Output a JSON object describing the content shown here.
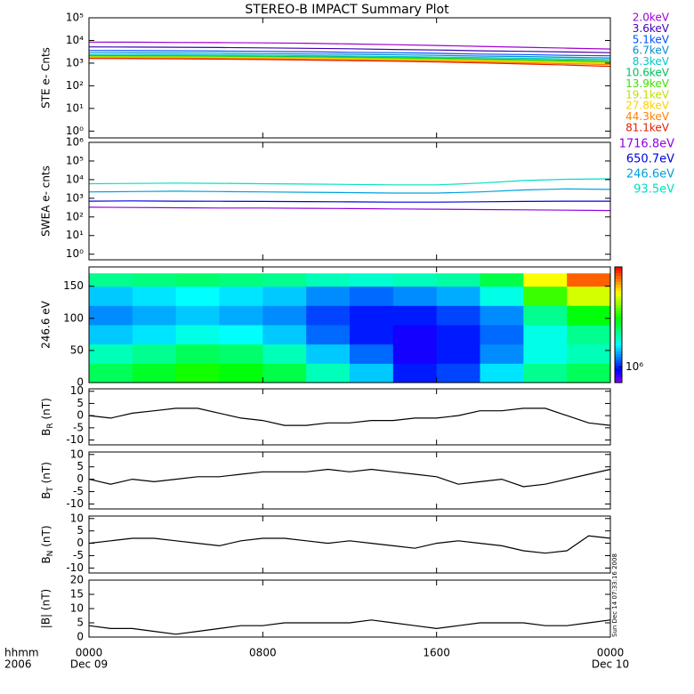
{
  "title": "STEREO-B IMPACT Summary Plot",
  "timestamp": "Sun Dec 14 07:33:16 2008",
  "x_axis": {
    "xlim": [
      0,
      24
    ],
    "ticks": [
      {
        "value": 0,
        "label": "0000"
      },
      {
        "value": 8,
        "label": "0800"
      },
      {
        "value": 16,
        "label": "1600"
      },
      {
        "value": 24,
        "label": "0000"
      }
    ],
    "day_labels": [
      {
        "value": 0,
        "label": "Dec 09"
      },
      {
        "value": 24,
        "label": "Dec 10"
      }
    ],
    "corner": [
      "hhmm",
      "2006"
    ]
  },
  "chart_data": [
    {
      "type": "line",
      "log_y": true,
      "ylabel": "STE e- Cnts",
      "ylim": [
        0.5,
        100000
      ],
      "yticks": [
        {
          "value": 1,
          "label": "10⁰"
        },
        {
          "value": 10,
          "label": "10¹"
        },
        {
          "value": 100,
          "label": "10²"
        },
        {
          "value": 1000,
          "label": "10³"
        },
        {
          "value": 10000,
          "label": "10⁴"
        },
        {
          "value": 100000,
          "label": "10⁵"
        }
      ],
      "x": [
        0,
        2,
        4,
        6,
        8,
        10,
        12,
        14,
        16,
        18,
        20,
        22,
        24
      ],
      "series": [
        {
          "name": "2.0keV",
          "color": "#a000d0",
          "values": [
            8500,
            8400,
            8200,
            8000,
            7800,
            7500,
            7000,
            6500,
            6000,
            5500,
            5000,
            4600,
            4200
          ]
        },
        {
          "name": "3.6keV",
          "color": "#4000b0",
          "values": [
            5200,
            5100,
            5000,
            4900,
            4700,
            4500,
            4300,
            4000,
            3800,
            3500,
            3300,
            3100,
            2900
          ]
        },
        {
          "name": "5.1keV",
          "color": "#0050ff",
          "values": [
            3600,
            3550,
            3500,
            3400,
            3300,
            3200,
            3000,
            2900,
            2700,
            2500,
            2400,
            2200,
            2100
          ]
        },
        {
          "name": "6.7keV",
          "color": "#0090d0",
          "values": [
            2900,
            2850,
            2800,
            2750,
            2650,
            2550,
            2450,
            2350,
            2200,
            2050,
            1950,
            1800,
            1700
          ]
        },
        {
          "name": "8.3keV",
          "color": "#00c8c8",
          "values": [
            2400,
            2380,
            2350,
            2300,
            2250,
            2150,
            2050,
            1950,
            1850,
            1750,
            1650,
            1550,
            1450
          ]
        },
        {
          "name": "10.6keV",
          "color": "#00c060",
          "values": [
            2150,
            2120,
            2100,
            2050,
            2000,
            1920,
            1850,
            1750,
            1650,
            1550,
            1450,
            1350,
            1250
          ]
        },
        {
          "name": "13.9keV",
          "color": "#40e000",
          "values": [
            2000,
            1980,
            1950,
            1900,
            1850,
            1780,
            1700,
            1620,
            1530,
            1430,
            1330,
            1230,
            1150
          ]
        },
        {
          "name": "19.1keV",
          "color": "#c0e000",
          "values": [
            1900,
            1880,
            1850,
            1800,
            1750,
            1680,
            1600,
            1520,
            1430,
            1330,
            1230,
            1130,
            1050
          ]
        },
        {
          "name": "27.8keV",
          "color": "#ffd000",
          "values": [
            1800,
            1780,
            1750,
            1700,
            1650,
            1580,
            1500,
            1420,
            1330,
            1230,
            1130,
            1030,
            950
          ]
        },
        {
          "name": "44.3keV",
          "color": "#ff8000",
          "values": [
            1700,
            1680,
            1650,
            1600,
            1550,
            1480,
            1400,
            1320,
            1230,
            1130,
            1030,
            930,
            850
          ]
        },
        {
          "name": "81.1keV",
          "color": "#e02000",
          "values": [
            1600,
            1570,
            1540,
            1490,
            1440,
            1370,
            1290,
            1210,
            1120,
            1020,
            920,
            820,
            720
          ]
        }
      ]
    },
    {
      "type": "line",
      "log_y": true,
      "ylabel": "SWEA e- cnts",
      "ylim": [
        0.5,
        1000000
      ],
      "yticks": [
        {
          "value": 1,
          "label": "10⁰"
        },
        {
          "value": 10,
          "label": "10¹"
        },
        {
          "value": 100,
          "label": "10²"
        },
        {
          "value": 1000,
          "label": "10³"
        },
        {
          "value": 10000,
          "label": "10⁴"
        },
        {
          "value": 100000,
          "label": "10⁵"
        },
        {
          "value": 1000000,
          "label": "10⁶"
        }
      ],
      "x": [
        0,
        2,
        4,
        6,
        8,
        10,
        12,
        14,
        16,
        18,
        20,
        22,
        24
      ],
      "series": [
        {
          "name": "1716.8eV",
          "color": "#9000e0",
          "values": [
            330,
            320,
            310,
            300,
            300,
            290,
            280,
            270,
            260,
            250,
            240,
            230,
            220
          ]
        },
        {
          "name": "650.7eV",
          "color": "#0000e0",
          "values": [
            700,
            720,
            700,
            690,
            680,
            660,
            640,
            620,
            620,
            650,
            680,
            700,
            700
          ]
        },
        {
          "name": "246.6eV",
          "color": "#00a0e0",
          "values": [
            2200,
            2300,
            2400,
            2300,
            2200,
            2100,
            2000,
            1900,
            1900,
            2200,
            2800,
            3200,
            3000
          ]
        },
        {
          "name": "93.5eV",
          "color": "#00e0c0",
          "values": [
            6000,
            6200,
            6500,
            6300,
            6000,
            5800,
            5500,
            5200,
            5200,
            6500,
            9000,
            10500,
            11000
          ]
        }
      ]
    },
    {
      "type": "heatmap",
      "ylabel": "246.6 eV",
      "ylim": [
        0,
        180
      ],
      "yticks": [
        0,
        50,
        100,
        150
      ],
      "x": [
        0,
        2,
        4,
        6,
        8,
        10,
        12,
        14,
        16,
        18,
        20,
        22,
        24
      ],
      "y": [
        0,
        30,
        60,
        90,
        120,
        150,
        170
      ],
      "zlim": [
        700000,
        10000000
      ],
      "log_z": true,
      "zticks": [
        {
          "value": 1000000,
          "label": "10⁶"
        }
      ],
      "z": [
        [
          2500000,
          2000000,
          1500000,
          1300000,
          1500000,
          2200000
        ],
        [
          2800000,
          2200000,
          1600000,
          1400000,
          1600000,
          2300000
        ],
        [
          3200000,
          2500000,
          1800000,
          1500000,
          1700000,
          2400000
        ],
        [
          3000000,
          2400000,
          1700000,
          1400000,
          1600000,
          2300000
        ],
        [
          2600000,
          2000000,
          1500000,
          1300000,
          1500000,
          2200000
        ],
        [
          2000000,
          1500000,
          1200000,
          1100000,
          1300000,
          2000000
        ],
        [
          1500000,
          1200000,
          1000000,
          1000000,
          1200000,
          1900000
        ],
        [
          1000000,
          900000,
          900000,
          1000000,
          1300000,
          2000000
        ],
        [
          1100000,
          1000000,
          1000000,
          1100000,
          1400000,
          2100000
        ],
        [
          1600000,
          1300000,
          1200000,
          1300000,
          1800000,
          2600000
        ],
        [
          2200000,
          1800000,
          1800000,
          2200000,
          3500000,
          5500000
        ],
        [
          2500000,
          2000000,
          2200000,
          3000000,
          5000000,
          8000000
        ]
      ]
    },
    {
      "type": "line",
      "ylabel": {
        "main": "B",
        "sub": "R",
        "unit": " (nT)"
      },
      "ylim": [
        -12,
        11
      ],
      "yticks": [
        -10,
        -5,
        0,
        5,
        10
      ],
      "x": [
        0,
        1,
        2,
        3,
        4,
        5,
        6,
        7,
        8,
        9,
        10,
        11,
        12,
        13,
        14,
        15,
        16,
        17,
        18,
        19,
        20,
        21,
        22,
        23,
        24
      ],
      "series": [
        {
          "color": "#000000",
          "values": [
            0,
            -1,
            1,
            2,
            3,
            3,
            1,
            -1,
            -2,
            -4,
            -4,
            -3,
            -3,
            -2,
            -2,
            -1,
            -1,
            0,
            2,
            2,
            3,
            3,
            0,
            -3,
            -4
          ]
        }
      ]
    },
    {
      "type": "line",
      "ylabel": {
        "main": "B",
        "sub": "T",
        "unit": " (nT)"
      },
      "ylim": [
        -12,
        11
      ],
      "yticks": [
        -10,
        -5,
        0,
        5,
        10
      ],
      "x": [
        0,
        1,
        2,
        3,
        4,
        5,
        6,
        7,
        8,
        9,
        10,
        11,
        12,
        13,
        14,
        15,
        16,
        17,
        18,
        19,
        20,
        21,
        22,
        23,
        24
      ],
      "series": [
        {
          "color": "#000000",
          "values": [
            0,
            -2,
            0,
            -1,
            0,
            1,
            1,
            2,
            3,
            3,
            3,
            4,
            3,
            4,
            3,
            2,
            1,
            -2,
            -1,
            0,
            -3,
            -2,
            0,
            2,
            4
          ]
        }
      ]
    },
    {
      "type": "line",
      "ylabel": {
        "main": "B",
        "sub": "N",
        "unit": " (nT)"
      },
      "ylim": [
        -12,
        11
      ],
      "yticks": [
        -10,
        -5,
        0,
        5,
        10
      ],
      "x": [
        0,
        1,
        2,
        3,
        4,
        5,
        6,
        7,
        8,
        9,
        10,
        11,
        12,
        13,
        14,
        15,
        16,
        17,
        18,
        19,
        20,
        21,
        22,
        23,
        24
      ],
      "series": [
        {
          "color": "#000000",
          "values": [
            0,
            1,
            2,
            2,
            1,
            0,
            -1,
            1,
            2,
            2,
            1,
            0,
            1,
            0,
            -1,
            -2,
            0,
            1,
            0,
            -1,
            -3,
            -4,
            -3,
            3,
            2
          ]
        }
      ]
    },
    {
      "type": "line",
      "ylabel": "|B| (nT)",
      "ylim": [
        0,
        20
      ],
      "yticks": [
        0,
        5,
        10,
        15,
        20
      ],
      "x": [
        0,
        1,
        2,
        3,
        4,
        5,
        6,
        7,
        8,
        9,
        10,
        11,
        12,
        13,
        14,
        15,
        16,
        17,
        18,
        19,
        20,
        21,
        22,
        23,
        24
      ],
      "series": [
        {
          "color": "#000000",
          "values": [
            4,
            3,
            3,
            2,
            1,
            2,
            3,
            4,
            4,
            5,
            5,
            5,
            5,
            6,
            5,
            4,
            3,
            4,
            5,
            5,
            5,
            4,
            4,
            5,
            6
          ]
        }
      ]
    }
  ]
}
